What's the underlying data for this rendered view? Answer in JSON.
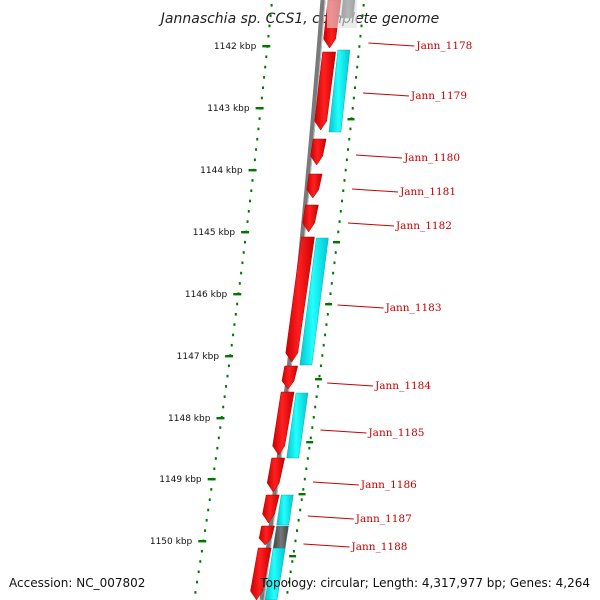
{
  "title": "Jannaschia sp. CCS1, complete genome",
  "footer": {
    "accession": "Accession: NC_007802",
    "topology": "Topology: circular; Length: 4,317,977 bp; Genes: 4,264"
  },
  "colors": {
    "backbone": "#777777",
    "cds": "#ff0000",
    "annotation": "#00eeee",
    "other": "#555555",
    "ticks": "#007700",
    "labels": "#cc0000"
  },
  "kbp_labels": [
    "1142 kbp",
    "1143 kbp",
    "1144 kbp",
    "1145 kbp",
    "1146 kbp",
    "1147 kbp",
    "1148 kbp",
    "1149 kbp",
    "1150 kbp"
  ],
  "gene_labels": [
    "Jann_1178",
    "Jann_1179",
    "Jann_1180",
    "Jann_1181",
    "Jann_1182",
    "Jann_1183",
    "Jann_1184",
    "Jann_1185",
    "Jann_1186",
    "Jann_1187",
    "Jann_1188"
  ]
}
